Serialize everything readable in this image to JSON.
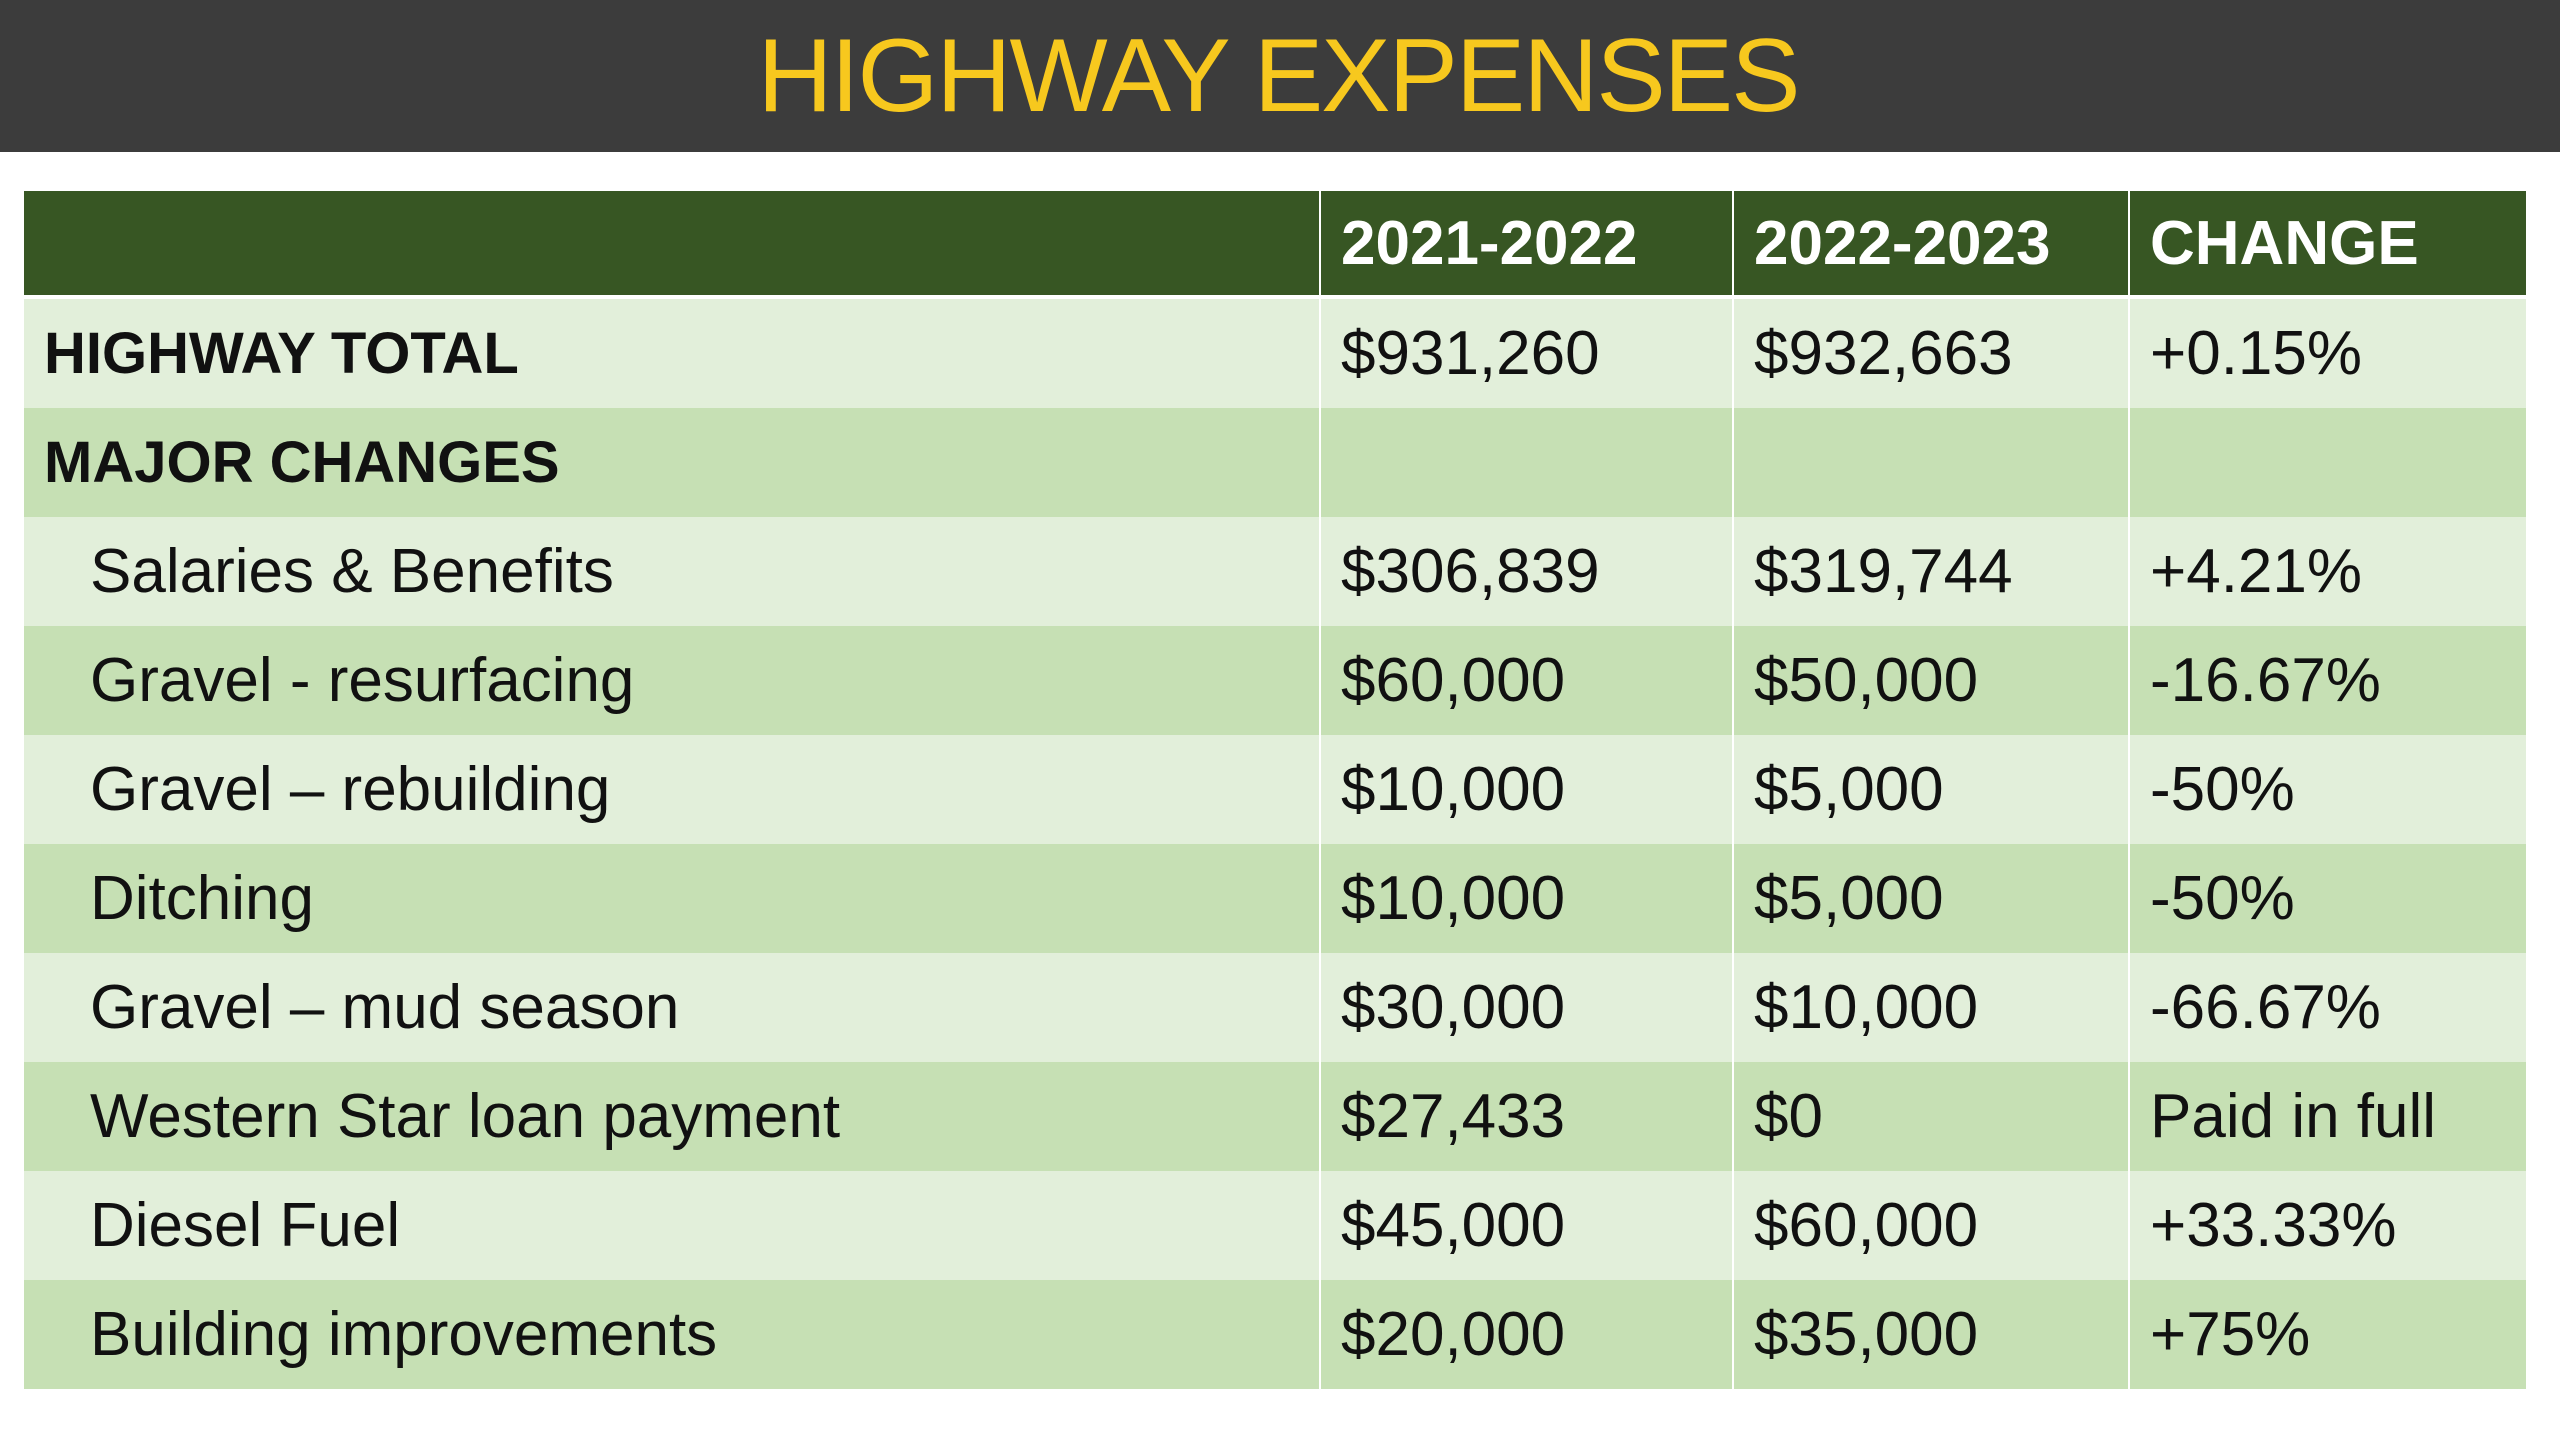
{
  "title": "HIGHWAY EXPENSES",
  "colors": {
    "title_bar": "#3c3c3c",
    "title_text": "#f7c81e",
    "header_row": "#375623",
    "row_light": "#e2efda",
    "row_dark": "#c6e0b4"
  },
  "table": {
    "columns": [
      "",
      "2021-2022",
      "2022-2023",
      "CHANGE"
    ],
    "rows": [
      {
        "label": "HIGHWAY TOTAL",
        "y1": "$931,260",
        "y2": "$932,663",
        "change": "+0.15%"
      },
      {
        "label": "MAJOR CHANGES",
        "y1": "",
        "y2": "",
        "change": ""
      },
      {
        "label": "Salaries & Benefits",
        "y1": "$306,839",
        "y2": "$319,744",
        "change": "+4.21%"
      },
      {
        "label": "Gravel - resurfacing",
        "y1": "$60,000",
        "y2": "$50,000",
        "change": "-16.67%"
      },
      {
        "label": "Gravel – rebuilding",
        "y1": "$10,000",
        "y2": "$5,000",
        "change": "-50%"
      },
      {
        "label": "Ditching",
        "y1": "$10,000",
        "y2": "$5,000",
        "change": "-50%"
      },
      {
        "label": "Gravel – mud season",
        "y1": "$30,000",
        "y2": "$10,000",
        "change": "-66.67%"
      },
      {
        "label": "Western Star loan payment",
        "y1": "$27,433",
        "y2": "$0",
        "change": "Paid in full"
      },
      {
        "label": "Diesel Fuel",
        "y1": "$45,000",
        "y2": "$60,000",
        "change": "+33.33%"
      },
      {
        "label": "Building improvements",
        "y1": "$20,000",
        "y2": "$35,000",
        "change": "+75%"
      }
    ]
  }
}
